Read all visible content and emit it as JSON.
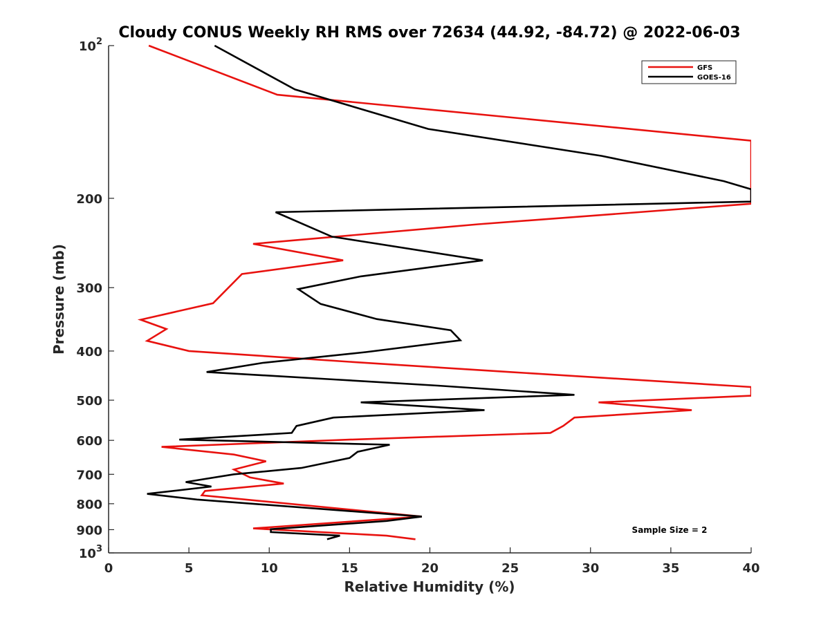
{
  "chart_data": {
    "type": "line",
    "title": "Cloudy CONUS Weekly RH RMS over 72634 (44.92, -84.72) @ 2022-06-03",
    "xlabel": "Relative Humidity (%)",
    "ylabel": "Pressure (mb)",
    "xlim": [
      0,
      40
    ],
    "ylim": [
      100,
      1000
    ],
    "y_scale": "log",
    "y_reversed": true,
    "grid": false,
    "legend_position": "top-right",
    "x_ticks": [
      {
        "value": 0,
        "label": "0"
      },
      {
        "value": 5,
        "label": "5"
      },
      {
        "value": 10,
        "label": "10"
      },
      {
        "value": 15,
        "label": "15"
      },
      {
        "value": 20,
        "label": "20"
      },
      {
        "value": 25,
        "label": "25"
      },
      {
        "value": 30,
        "label": "30"
      },
      {
        "value": 35,
        "label": "35"
      },
      {
        "value": 40,
        "label": "40"
      }
    ],
    "y_ticks": [
      {
        "value": 100,
        "base": "10",
        "exp": "2"
      },
      {
        "value": 200,
        "label": "200"
      },
      {
        "value": 300,
        "label": "300"
      },
      {
        "value": 400,
        "label": "400"
      },
      {
        "value": 500,
        "label": "500"
      },
      {
        "value": 600,
        "label": "600"
      },
      {
        "value": 700,
        "label": "700"
      },
      {
        "value": 800,
        "label": "800"
      },
      {
        "value": 900,
        "label": "900"
      },
      {
        "value": 1000,
        "base": "10",
        "exp": "3"
      }
    ],
    "annotation": "Sample Size = 2",
    "series": [
      {
        "name": "GFS",
        "color": "#e8120f",
        "points": [
          [
            2.5,
            100
          ],
          [
            10.5,
            125
          ],
          [
            40,
            154
          ],
          [
            40,
            205
          ],
          [
            23,
            225
          ],
          [
            9.0,
            246
          ],
          [
            14.6,
            265
          ],
          [
            8.3,
            282
          ],
          [
            6.5,
            322
          ],
          [
            2.0,
            347
          ],
          [
            3.6,
            362
          ],
          [
            2.4,
            382
          ],
          [
            5.0,
            400
          ],
          [
            15,
            420
          ],
          [
            25,
            440
          ],
          [
            40,
            471
          ],
          [
            40,
            490
          ],
          [
            30.5,
            505
          ],
          [
            36.3,
            523
          ],
          [
            29,
            541
          ],
          [
            28.3,
            562
          ],
          [
            27.5,
            580
          ],
          [
            15,
            598
          ],
          [
            3.3,
            618
          ],
          [
            7.8,
            640
          ],
          [
            9.8,
            660
          ],
          [
            7.8,
            685
          ],
          [
            8.8,
            710
          ],
          [
            10.9,
            730
          ],
          [
            6.0,
            755
          ],
          [
            5.8,
            770
          ],
          [
            19.5,
            848
          ],
          [
            9.0,
            895
          ],
          [
            17.3,
            925
          ],
          [
            19.1,
            940
          ]
        ]
      },
      {
        "name": "GOES-16",
        "color": "#000000",
        "points": [
          [
            6.6,
            100
          ],
          [
            11.6,
            122
          ],
          [
            19.9,
            146
          ],
          [
            30.7,
            165
          ],
          [
            38.3,
            185
          ],
          [
            40,
            192
          ],
          [
            40,
            203
          ],
          [
            10.4,
            213
          ],
          [
            13.9,
            238
          ],
          [
            23.3,
            265
          ],
          [
            15.7,
            285
          ],
          [
            11.8,
            302
          ],
          [
            13.2,
            323
          ],
          [
            16.7,
            346
          ],
          [
            21.3,
            364
          ],
          [
            21.9,
            381
          ],
          [
            16,
            402
          ],
          [
            9.6,
            422
          ],
          [
            6.1,
            440
          ],
          [
            14,
            455
          ],
          [
            20.5,
            468
          ],
          [
            29,
            488
          ],
          [
            15.7,
            505
          ],
          [
            23.4,
            523
          ],
          [
            14,
            541
          ],
          [
            11.7,
            562
          ],
          [
            11.4,
            580
          ],
          [
            4.4,
            598
          ],
          [
            17.5,
            612
          ],
          [
            15.5,
            632
          ],
          [
            15,
            650
          ],
          [
            12,
            680
          ],
          [
            7.8,
            700
          ],
          [
            4.8,
            725
          ],
          [
            6.4,
            740
          ],
          [
            2.4,
            765
          ],
          [
            5.5,
            785
          ],
          [
            19.5,
            848
          ],
          [
            17.3,
            865
          ],
          [
            10.1,
            898
          ],
          [
            10.1,
            910
          ],
          [
            14.4,
            925
          ],
          [
            13.6,
            940
          ]
        ]
      }
    ]
  }
}
